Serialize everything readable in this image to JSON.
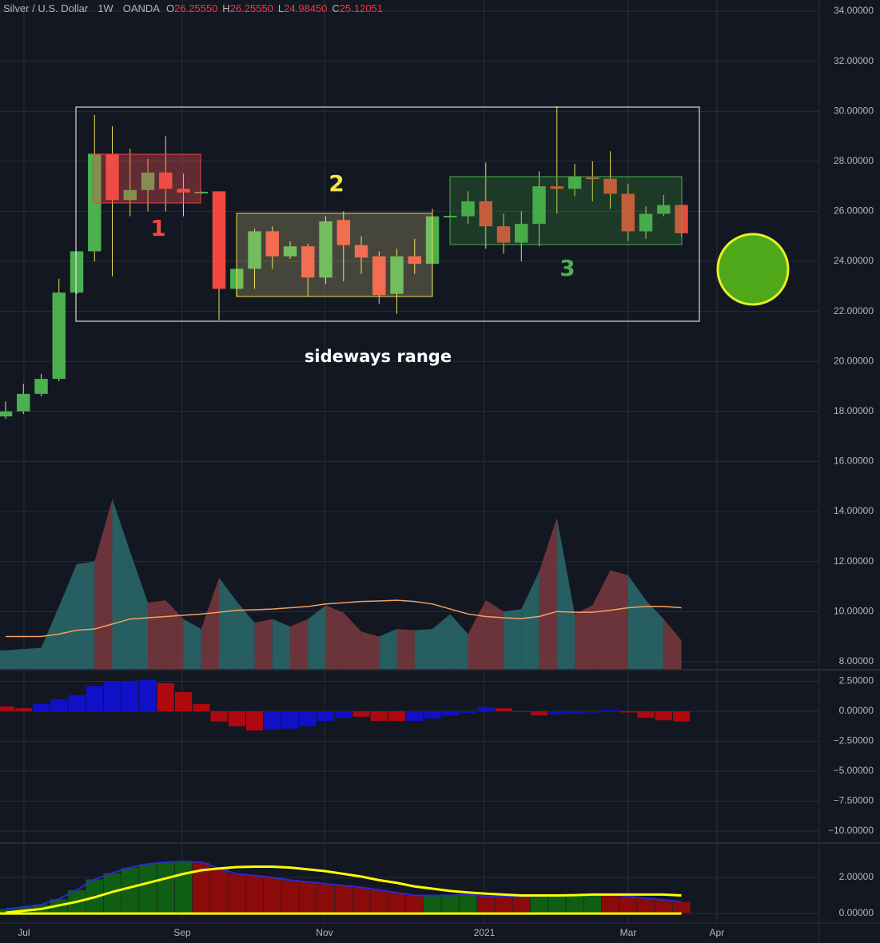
{
  "chart_data": [
    {
      "type": "candlestick",
      "title": "Silver / U.S. Dollar",
      "interval": "1W",
      "source": "OANDA",
      "legend": [
        {
          "key": "O",
          "text": "26.25550"
        },
        {
          "key": "H",
          "text": "26.25550"
        },
        {
          "key": "L",
          "text": "24.98450"
        },
        {
          "key": "C",
          "text": "25.12051"
        }
      ],
      "x": [
        0,
        1,
        2,
        3,
        4,
        5,
        6,
        7,
        8,
        9,
        10,
        11,
        12,
        13,
        14,
        15,
        16,
        17,
        18,
        19,
        20,
        21,
        22,
        23,
        24,
        25,
        26,
        27,
        28,
        29,
        30,
        31,
        32,
        33,
        34,
        35,
        36,
        37,
        38
      ],
      "open": [
        17.8,
        18.0,
        18.7,
        19.3,
        22.75,
        24.4,
        28.3,
        26.45,
        26.85,
        27.55,
        26.9,
        26.75,
        26.8,
        22.9,
        23.7,
        25.2,
        24.2,
        24.6,
        23.35,
        25.65,
        24.65,
        24.2,
        22.7,
        24.2,
        23.9,
        25.8,
        25.8,
        26.4,
        25.4,
        24.75,
        25.5,
        27.0,
        26.9,
        27.35,
        27.3,
        26.7,
        25.2,
        25.9,
        26.2555
      ],
      "high": [
        18.4,
        19.1,
        19.5,
        23.3,
        24.4,
        29.85,
        29.4,
        28.5,
        28.1,
        29.0,
        27.5,
        26.8,
        26.8,
        23.7,
        25.3,
        25.4,
        24.8,
        24.7,
        25.8,
        26.0,
        25.0,
        24.4,
        24.5,
        24.9,
        26.1,
        25.9,
        26.8,
        27.95,
        25.9,
        26.0,
        27.6,
        30.2,
        27.9,
        28.0,
        28.4,
        27.1,
        26.2,
        26.65,
        26.2555
      ],
      "low": [
        17.7,
        17.9,
        18.6,
        19.2,
        22.7,
        24.0,
        23.4,
        25.8,
        26.0,
        26.0,
        25.8,
        26.7,
        21.65,
        22.6,
        22.9,
        23.7,
        24.1,
        22.6,
        23.1,
        23.2,
        23.5,
        22.3,
        21.9,
        23.5,
        23.8,
        25.75,
        25.5,
        24.5,
        24.3,
        24.0,
        24.6,
        25.9,
        26.6,
        26.4,
        26.1,
        24.8,
        24.9,
        25.8,
        24.9845
      ],
      "close": [
        18.0,
        18.7,
        19.3,
        22.75,
        24.4,
        28.3,
        26.45,
        26.85,
        27.55,
        26.9,
        26.75,
        26.78,
        22.9,
        23.7,
        25.2,
        24.2,
        24.6,
        23.35,
        25.6,
        24.65,
        24.15,
        22.65,
        24.2,
        23.9,
        25.8,
        25.82,
        26.4,
        25.4,
        24.75,
        25.5,
        27.0,
        26.9,
        27.4,
        27.3,
        26.7,
        25.2,
        25.9,
        26.25,
        25.12051
      ],
      "up_color": "#4caf50",
      "down_color": "#f0493e",
      "indicator": {
        "values": [
          8.45,
          8.5,
          8.55,
          10.2,
          11.9,
          12.0,
          14.5,
          12.4,
          10.35,
          10.45,
          9.7,
          9.3,
          11.35,
          10.4,
          9.55,
          9.7,
          9.4,
          9.7,
          10.25,
          9.95,
          9.2,
          9.0,
          9.3,
          9.25,
          9.3,
          9.9,
          9.1,
          10.45,
          10.0,
          10.1,
          11.6,
          13.75,
          9.9,
          10.25,
          11.65,
          11.45,
          10.45,
          9.7,
          8.85
        ],
        "up_color": "#2a6b6c",
        "down_color": "#7b3a3e",
        "ma_values": [
          9.0,
          9.0,
          9.0,
          9.1,
          9.25,
          9.3,
          9.5,
          9.7,
          9.75,
          9.8,
          9.85,
          9.9,
          9.97,
          10.05,
          10.07,
          10.1,
          10.15,
          10.2,
          10.3,
          10.35,
          10.4,
          10.42,
          10.45,
          10.4,
          10.3,
          10.1,
          9.9,
          9.8,
          9.75,
          9.72,
          9.8,
          10.0,
          9.97,
          9.97,
          10.05,
          10.15,
          10.2,
          10.2,
          10.15
        ],
        "ma_color": "#f4a261"
      },
      "annotations": [
        "1",
        "2",
        "3",
        "sideways range"
      ],
      "xlim": [
        -0.315,
        45.75
      ],
      "xticks": [
        {
          "value": 1.03,
          "label": "Jul"
        },
        {
          "value": 9.93,
          "label": "Sep"
        },
        {
          "value": 17.93,
          "label": "Nov"
        },
        {
          "value": 26.92,
          "label": "2021"
        },
        {
          "value": 35.01,
          "label": "Mar"
        },
        {
          "value": 39.99,
          "label": "Apr"
        }
      ],
      "ylim": [
        7.674,
        34.447
      ],
      "yticks": [
        {
          "value": 34,
          "label": "34.00000"
        },
        {
          "value": 32,
          "label": "32.00000"
        },
        {
          "value": 30,
          "label": "30.00000"
        },
        {
          "value": 28,
          "label": "28.00000"
        },
        {
          "value": 26,
          "label": "26.00000"
        },
        {
          "value": 24,
          "label": "24.00000"
        },
        {
          "value": 22,
          "label": "22.00000"
        },
        {
          "value": 20,
          "label": "20.00000"
        },
        {
          "value": 18,
          "label": "18.00000"
        },
        {
          "value": 16,
          "label": "16.00000"
        },
        {
          "value": 14,
          "label": "14.00000"
        },
        {
          "value": 12,
          "label": "12.00000"
        },
        {
          "value": 10,
          "label": "10.00000"
        },
        {
          "value": 8,
          "label": "8.00000"
        }
      ],
      "grid": true
    },
    {
      "type": "bar",
      "x": [
        0,
        1,
        2,
        3,
        4,
        5,
        6,
        7,
        8,
        9,
        10,
        11,
        12,
        13,
        14,
        15,
        16,
        17,
        18,
        19,
        20,
        21,
        22,
        23,
        24,
        25,
        26,
        27,
        28,
        29,
        30,
        31,
        32,
        33,
        34,
        35,
        36,
        37,
        38
      ],
      "values": [
        0.4,
        0.25,
        0.6,
        1.0,
        1.35,
        2.1,
        2.45,
        2.55,
        2.6,
        2.35,
        1.6,
        0.6,
        -0.85,
        -1.25,
        -1.6,
        -1.5,
        -1.45,
        -1.25,
        -0.8,
        -0.55,
        -0.45,
        -0.8,
        -0.8,
        -0.8,
        -0.6,
        -0.35,
        -0.15,
        0.35,
        0.25,
        -0.05,
        -0.35,
        -0.25,
        -0.2,
        -0.1,
        0.1,
        -0.1,
        -0.55,
        -0.75,
        -0.85
      ],
      "colors": [
        "#b0080f",
        "#b0080f",
        "#1010c8",
        "#1010c8",
        "#1010c8",
        "#1010c8",
        "#1010c8",
        "#1010c8",
        "#1010c8",
        "#b0080f",
        "#b0080f",
        "#b0080f",
        "#b0080f",
        "#b0080f",
        "#b0080f",
        "#1010c8",
        "#1010c8",
        "#1010c8",
        "#1010c8",
        "#1010c8",
        "#b0080f",
        "#b0080f",
        "#b0080f",
        "#1010c8",
        "#1010c8",
        "#1010c8",
        "#1010c8",
        "#1010c8",
        "#b0080f",
        "#b0080f",
        "#b0080f",
        "#1010c8",
        "#1010c8",
        "#1010c8",
        "#1010c8",
        "#b0080f",
        "#b0080f",
        "#b0080f",
        "#b0080f"
      ],
      "ylim": [
        -11,
        3.47
      ],
      "yticks": [
        {
          "value": 2.5,
          "label": "2.50000"
        },
        {
          "value": 0,
          "label": "0.00000"
        },
        {
          "value": -2.5,
          "label": "−2.50000"
        },
        {
          "value": -5,
          "label": "−5.00000"
        },
        {
          "value": -7.5,
          "label": "−7.50000"
        },
        {
          "value": -10,
          "label": "−10.00000"
        }
      ],
      "grid": true
    },
    {
      "type": "bar",
      "x": [
        0,
        1,
        2,
        3,
        4,
        5,
        6,
        7,
        8,
        9,
        10,
        11,
        12,
        13,
        14,
        15,
        16,
        17,
        18,
        19,
        20,
        21,
        22,
        23,
        24,
        25,
        26,
        27,
        28,
        29,
        30,
        31,
        32,
        33,
        34,
        35,
        36,
        37,
        38
      ],
      "values": [
        0.25,
        0.35,
        0.5,
        0.8,
        1.3,
        1.9,
        2.25,
        2.55,
        2.75,
        2.85,
        2.9,
        2.85,
        2.5,
        2.2,
        2.1,
        2.0,
        1.85,
        1.75,
        1.65,
        1.55,
        1.45,
        1.3,
        1.15,
        1.0,
        1.0,
        1.0,
        1.05,
        0.95,
        0.95,
        0.9,
        0.95,
        1.0,
        1.0,
        1.05,
        1.05,
        0.95,
        0.85,
        0.75,
        0.65
      ],
      "colors": [
        "#0f5e14",
        "#0f5e14",
        "#0f5e14",
        "#0f5e14",
        "#0f5e14",
        "#0f5e14",
        "#0f5e14",
        "#0f5e14",
        "#0f5e14",
        "#0f5e14",
        "#0f5e14",
        "#8b0a0a",
        "#8b0a0a",
        "#8b0a0a",
        "#8b0a0a",
        "#8b0a0a",
        "#8b0a0a",
        "#8b0a0a",
        "#8b0a0a",
        "#8b0a0a",
        "#8b0a0a",
        "#8b0a0a",
        "#8b0a0a",
        "#8b0a0a",
        "#0f5e14",
        "#0f5e14",
        "#0f5e14",
        "#8b0a0a",
        "#8b0a0a",
        "#8b0a0a",
        "#0f5e14",
        "#0f5e14",
        "#0f5e14",
        "#0f5e14",
        "#8b0a0a",
        "#8b0a0a",
        "#8b0a0a",
        "#8b0a0a",
        "#8b0a0a"
      ],
      "outline_color": "#2a2ad0",
      "line_values": [
        0.05,
        0.15,
        0.25,
        0.45,
        0.65,
        0.9,
        1.2,
        1.45,
        1.7,
        1.95,
        2.2,
        2.4,
        2.5,
        2.58,
        2.6,
        2.6,
        2.55,
        2.45,
        2.35,
        2.2,
        2.05,
        1.85,
        1.7,
        1.5,
        1.38,
        1.25,
        1.17,
        1.1,
        1.05,
        1.0,
        1.0,
        1.0,
        1.02,
        1.05,
        1.05,
        1.05,
        1.05,
        1.05,
        1.0
      ],
      "line_color": "#ffff00",
      "ylim": [
        -0.53,
        3.91
      ],
      "yticks": [
        {
          "value": 2,
          "label": "2.00000"
        },
        {
          "value": 0,
          "label": "0.00000"
        }
      ],
      "grid": true
    }
  ]
}
